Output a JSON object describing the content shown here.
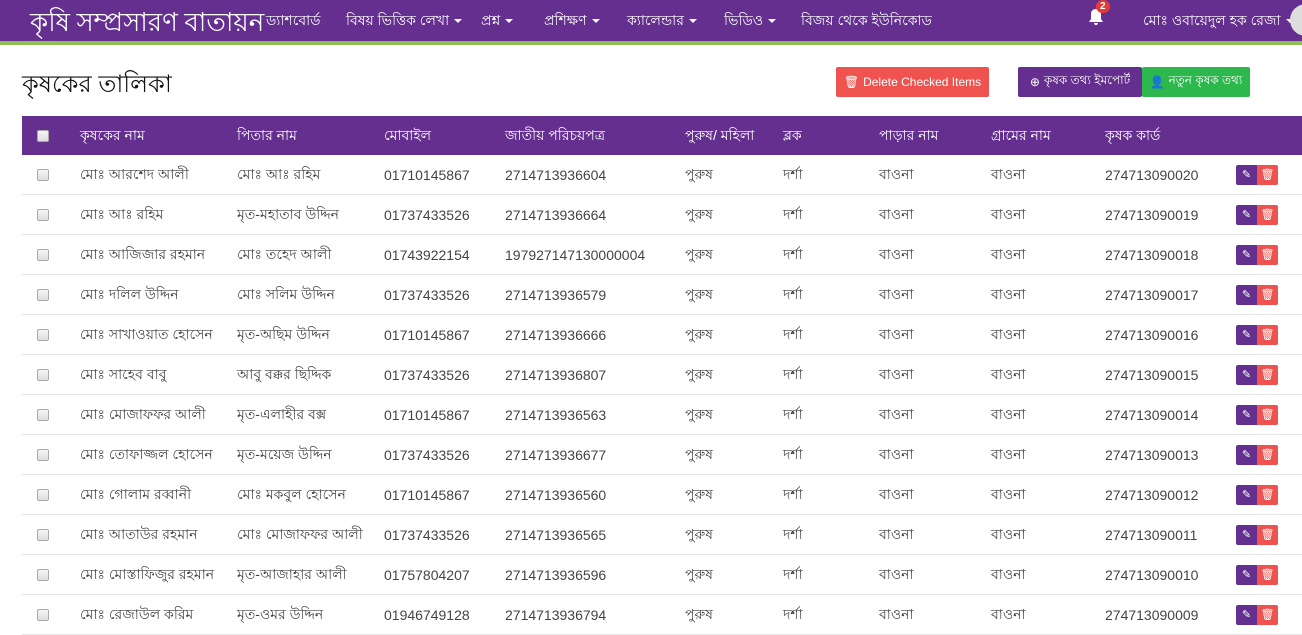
{
  "nav": {
    "brand": "কৃষি সম্প্রসারণ বাতায়ন",
    "items": [
      {
        "label": "ড্যাশবোর্ড",
        "dropdown": false
      },
      {
        "label": "বিষয় ভিত্তিক লেখা",
        "dropdown": true
      },
      {
        "label": "প্রশ্ন",
        "dropdown": true
      },
      {
        "label": "প্রশিক্ষণ",
        "dropdown": true
      },
      {
        "label": "ক্যালেন্ডার",
        "dropdown": true
      },
      {
        "label": "ভিডিও",
        "dropdown": true
      },
      {
        "label": "বিজয় থেকে ইউনিকোড",
        "dropdown": false
      }
    ],
    "notification_count": "2",
    "user": "মোঃ ওবায়েদুল হক রেজা"
  },
  "page": {
    "title": "কৃষকের তালিকা",
    "delete_label": "Delete Checked Items",
    "import_label": "কৃষক তথ্য ইমপোর্ট",
    "new_label": "নতুন কৃষক তথ্য"
  },
  "colors": {
    "primary": "#652f8f",
    "accent": "#8cc152",
    "danger": "#ee5350",
    "success": "#2db84d"
  },
  "table": {
    "headers": [
      "কৃষকের নাম",
      "পিতার নাম",
      "মোবাইল",
      "জাতীয় পরিচয়পত্র",
      "পুরুষ/ মহিলা",
      "ব্লক",
      "পাড়ার নাম",
      "গ্রামের নাম",
      "কৃষক কার্ড"
    ],
    "rows": [
      [
        "মোঃ আরশেদ আলী",
        "মোঃ আঃ রহিম",
        "01710145867",
        "2714713936604",
        "পুরুষ",
        "দর্শা",
        "বাওনা",
        "বাওনা",
        "274713090020"
      ],
      [
        "মোঃ আঃ রহিম",
        "মৃত-মহাতাব উদ্দিন",
        "01737433526",
        "2714713936664",
        "পুরুষ",
        "দর্শা",
        "বাওনা",
        "বাওনা",
        "274713090019"
      ],
      [
        "মোঃ আজিজার রহমান",
        "মোঃ তহেদ আলী",
        "01743922154",
        "197927147130000004",
        "পুরুষ",
        "দর্শা",
        "বাওনা",
        "বাওনা",
        "274713090018"
      ],
      [
        "মোঃ দলিল উদ্দিন",
        "মোঃ সলিম উদ্দিন",
        "01737433526",
        "2714713936579",
        "পুরুষ",
        "দর্শা",
        "বাওনা",
        "বাওনা",
        "274713090017"
      ],
      [
        "মোঃ সাখাওয়াত হোসেন",
        "মৃত-অছিম উদ্দিন",
        "01710145867",
        "2714713936666",
        "পুরুষ",
        "দর্শা",
        "বাওনা",
        "বাওনা",
        "274713090016"
      ],
      [
        "মোঃ সাহেব বাবু",
        "আবু বক্কর ছিদ্দিক",
        "01737433526",
        "2714713936807",
        "পুরুষ",
        "দর্শা",
        "বাওনা",
        "বাওনা",
        "274713090015"
      ],
      [
        "মোঃ মোজাফফর আলী",
        "মৃত-এলাহীর বক্স",
        "01710145867",
        "2714713936563",
        "পুরুষ",
        "দর্শা",
        "বাওনা",
        "বাওনা",
        "274713090014"
      ],
      [
        "মোঃ তোফাজ্জল হোসেন",
        "মৃত-ময়েজ উদ্দিন",
        "01737433526",
        "2714713936677",
        "পুরুষ",
        "দর্শা",
        "বাওনা",
        "বাওনা",
        "274713090013"
      ],
      [
        "মোঃ গোলাম রব্বানী",
        "মোঃ মকবুল হোসেন",
        "01710145867",
        "2714713936560",
        "পুরুষ",
        "দর্শা",
        "বাওনা",
        "বাওনা",
        "274713090012"
      ],
      [
        "মোঃ আতাউর রহমান",
        "মোঃ মোজাফফর আলী",
        "01737433526",
        "2714713936565",
        "পুরুষ",
        "দর্শা",
        "বাওনা",
        "বাওনা",
        "274713090011"
      ],
      [
        "মোঃ মোস্তাফিজুর রহমান",
        "মৃত-আজাহার আলী",
        "01757804207",
        "2714713936596",
        "পুরুষ",
        "দর্শা",
        "বাওনা",
        "বাওনা",
        "274713090010"
      ],
      [
        "মোঃ রেজাউল করিম",
        "মৃত-ওমর উদ্দিন",
        "01946749128",
        "2714713936794",
        "পুরুষ",
        "দর্শা",
        "বাওনা",
        "বাওনা",
        "274713090009"
      ]
    ]
  }
}
